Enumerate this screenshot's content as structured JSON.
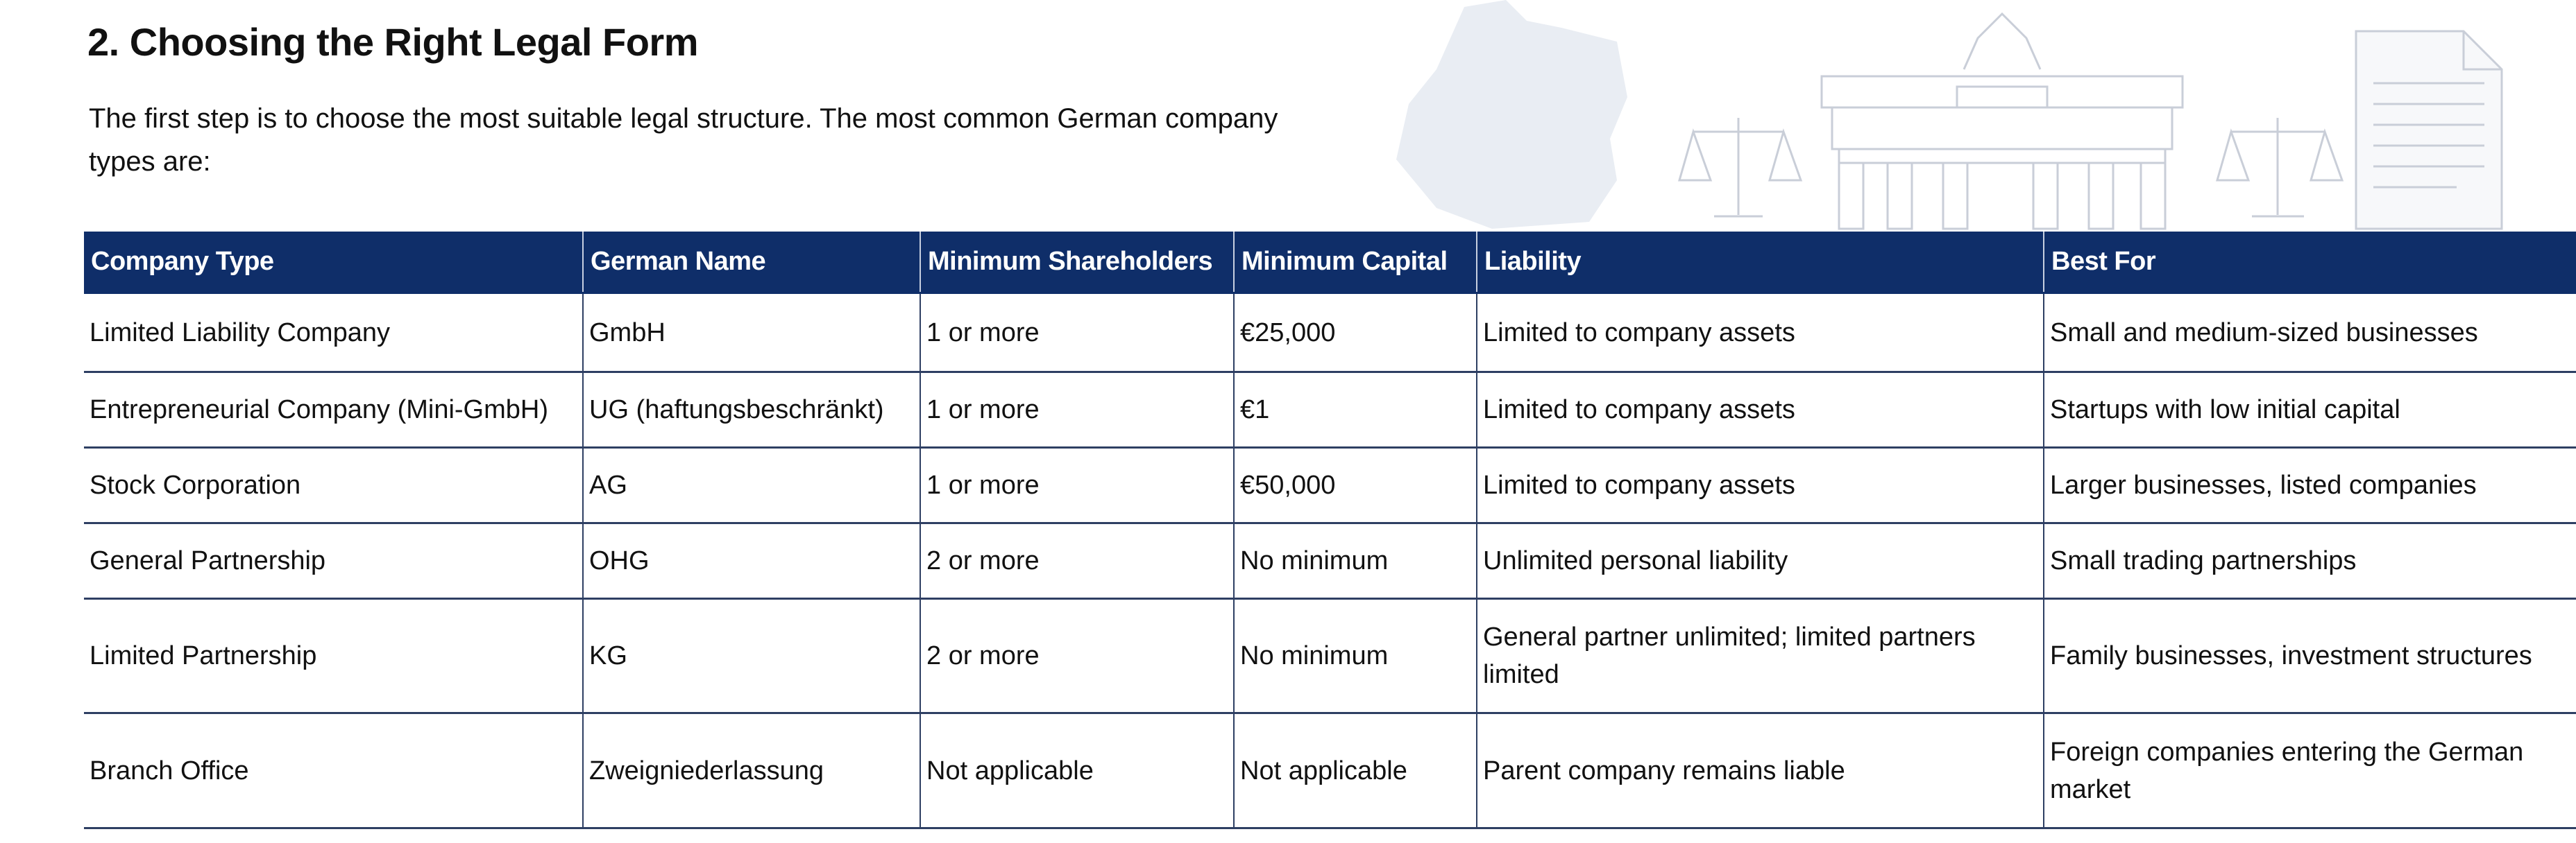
{
  "header": {
    "title": "2. Choosing the Right Legal Form",
    "intro": "The first step is to choose the most suitable legal structure. The most common German company types are:"
  },
  "table": {
    "columns": [
      "Company Type",
      "German Name",
      "Minimum Shareholders",
      "Minimum Capital",
      "Liability",
      "Best For"
    ],
    "rows": [
      [
        "Limited Liability Company",
        "GmbH",
        "1 or more",
        "€25,000",
        "Limited to company assets",
        "Small and medium-sized businesses"
      ],
      [
        "Entrepreneurial Company (Mini-GmbH)",
        "UG (haftungsbeschränkt)",
        "1 or more",
        "€1",
        "Limited to company assets",
        "Startups with low initial capital"
      ],
      [
        "Stock Corporation",
        "AG",
        "1 or more",
        "€50,000",
        "Limited to company assets",
        "Larger businesses, listed companies"
      ],
      [
        "General Partnership",
        "OHG",
        "2 or more",
        "No minimum",
        "Unlimited personal liability",
        "Small trading partnerships"
      ],
      [
        "Limited Partnership",
        "KG",
        "2 or more",
        "No minimum",
        "General partner unlimited; limited partners limited",
        "Family businesses, investment structures"
      ],
      [
        "Branch Office",
        "Zweigniederlassung",
        "Not applicable",
        "Not applicable",
        "Parent company remains liable",
        "Foreign companies entering the German market"
      ]
    ]
  }
}
